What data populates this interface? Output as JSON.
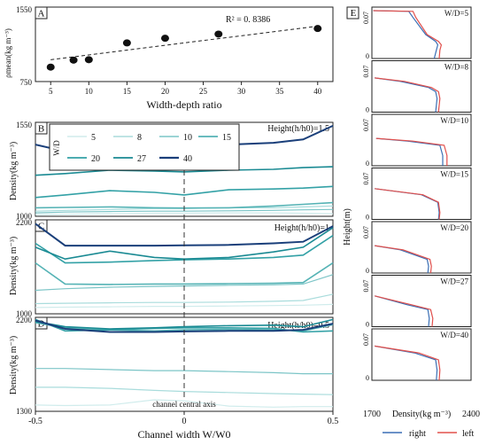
{
  "panel_a": {
    "letter": "A",
    "ylabel": "ρmean(kg m⁻³)",
    "xlabel": "Width-depth ratio",
    "y_ticks": [
      "1550",
      "750"
    ],
    "annotation": "R² = 0. 8386",
    "chart_data": {
      "type": "scatter",
      "x": [
        5,
        8,
        10,
        15,
        20,
        27,
        40
      ],
      "y": [
        905,
        980,
        985,
        1165,
        1215,
        1260,
        1320
      ],
      "xlim": [
        3,
        42
      ],
      "ylim": [
        750,
        1550
      ],
      "x_ticks": [
        5,
        10,
        15,
        20,
        25,
        30,
        35,
        40
      ],
      "trendline": {
        "x": [
          5,
          40
        ],
        "y": [
          985,
          1345
        ]
      }
    }
  },
  "legend": {
    "title": "W/D",
    "entries": [
      {
        "label": "5",
        "color": "#d0ecec"
      },
      {
        "label": "8",
        "color": "#a9dcdc"
      },
      {
        "label": "10",
        "color": "#7cc5c7"
      },
      {
        "label": "15",
        "color": "#55b3b5"
      },
      {
        "label": "20",
        "color": "#33a1a6"
      },
      {
        "label": "27",
        "color": "#1a8a93"
      },
      {
        "label": "40",
        "color": "#1a3f7a"
      }
    ]
  },
  "panels_bcd": [
    {
      "letter": "B",
      "height_label": "Height(h/h0)=1.5",
      "ylabel": "Density(kg m⁻³)",
      "y_ticks": [
        "1550",
        "1000"
      ],
      "chart_data": {
        "type": "line",
        "ylim": [
          1000,
          1550
        ],
        "x": [
          -0.5,
          -0.4,
          -0.25,
          -0.1,
          0,
          0.15,
          0.3,
          0.4,
          0.5
        ],
        "series": [
          {
            "name": "5",
            "values": [
              1010,
              1012,
              1015,
              1018,
              1018,
              1020,
              1020,
              1018,
              1015
            ]
          },
          {
            "name": "8",
            "values": [
              1030,
              1035,
              1040,
              1045,
              1045,
              1050,
              1050,
              1055,
              1060
            ]
          },
          {
            "name": "10",
            "values": [
              1020,
              1025,
              1028,
              1030,
              1030,
              1032,
              1035,
              1038,
              1040
            ]
          },
          {
            "name": "15",
            "values": [
              1050,
              1052,
              1055,
              1050,
              1048,
              1050,
              1060,
              1070,
              1080
            ]
          },
          {
            "name": "20",
            "values": [
              1110,
              1125,
              1150,
              1140,
              1125,
              1155,
              1160,
              1165,
              1175
            ]
          },
          {
            "name": "27",
            "values": [
              1240,
              1250,
              1270,
              1265,
              1260,
              1270,
              1275,
              1285,
              1290
            ]
          },
          {
            "name": "40",
            "values": [
              1420,
              1380,
              1400,
              1405,
              1410,
              1420,
              1430,
              1450,
              1530
            ]
          }
        ]
      }
    },
    {
      "letter": "C",
      "height_label": "Height(h/h0)=1",
      "ylabel": "Density(kg m⁻³)",
      "y_ticks": [
        "2200",
        "1000"
      ],
      "chart_data": {
        "type": "line",
        "ylim": [
          1000,
          2200
        ],
        "x": [
          -0.5,
          -0.4,
          -0.25,
          -0.1,
          0,
          0.15,
          0.3,
          0.4,
          0.5
        ],
        "series": [
          {
            "name": "5",
            "values": [
              1080,
              1085,
              1090,
              1095,
              1095,
              1100,
              1105,
              1110,
              1120
            ]
          },
          {
            "name": "8",
            "values": [
              1130,
              1135,
              1140,
              1145,
              1145,
              1150,
              1160,
              1170,
              1250
            ]
          },
          {
            "name": "10",
            "values": [
              1300,
              1320,
              1340,
              1350,
              1355,
              1365,
              1370,
              1380,
              1500
            ]
          },
          {
            "name": "15",
            "values": [
              1650,
              1380,
              1375,
              1380,
              1380,
              1385,
              1390,
              1400,
              1650
            ]
          },
          {
            "name": "20",
            "values": [
              1900,
              1650,
              1660,
              1680,
              1690,
              1700,
              1720,
              1750,
              2000
            ]
          },
          {
            "name": "27",
            "values": [
              1850,
              1700,
              1800,
              1720,
              1700,
              1720,
              1790,
              1850,
              2100
            ]
          },
          {
            "name": "40",
            "values": [
              2150,
              1870,
              1870,
              1870,
              1875,
              1880,
              1900,
              1920,
              2120
            ]
          }
        ]
      }
    },
    {
      "letter": "D",
      "height_label": "Height(h/h0)=0.5",
      "ylabel": "Density(kg m⁻³)",
      "y_ticks": [
        "2200",
        "1300"
      ],
      "center_label": "channel central axis",
      "xlabel": "Channel width  W/W0",
      "x_ticks": [
        "-0.5",
        "0",
        "0.5"
      ],
      "chart_data": {
        "type": "line",
        "ylim": [
          1300,
          2200
        ],
        "x": [
          -0.5,
          -0.4,
          -0.25,
          -0.1,
          0,
          0.15,
          0.3,
          0.4,
          0.5
        ],
        "series": [
          {
            "name": "5",
            "values": [
              1360,
              1355,
              1360,
              1410,
              1400,
              1350,
              1340,
              1345,
              1345
            ]
          },
          {
            "name": "8",
            "values": [
              1530,
              1530,
              1520,
              1500,
              1490,
              1480,
              1470,
              1465,
              1460
            ]
          },
          {
            "name": "10",
            "values": [
              1710,
              1710,
              1700,
              1690,
              1690,
              1680,
              1670,
              1660,
              1660
            ]
          },
          {
            "name": "15",
            "values": [
              2150,
              2100,
              2080,
              2070,
              2080,
              2085,
              2080,
              2070,
              2130
            ]
          },
          {
            "name": "20",
            "values": [
              2180,
              2070,
              2080,
              2095,
              2100,
              2100,
              2095,
              2060,
              2070
            ]
          },
          {
            "name": "27",
            "values": [
              2160,
              2110,
              2090,
              2100,
              2110,
              2120,
              2125,
              2110,
              2180
            ]
          },
          {
            "name": "40",
            "values": [
              2170,
              2090,
              2060,
              2060,
              2065,
              2070,
              2070,
              2080,
              2140
            ]
          }
        ]
      }
    }
  ],
  "panel_e": {
    "letter": "E",
    "ylabel": "Height(m)",
    "xlabel": "Density(kg m⁻³)",
    "x_ticks": [
      "1700",
      "2400"
    ],
    "y_tick_top": "0.07",
    "y_tick_zero": "0",
    "legend": [
      {
        "label": "right",
        "color": "#3a6fb5"
      },
      {
        "label": "left",
        "color": "#e2504c"
      }
    ],
    "chart_data": [
      {
        "type": "line",
        "label": "W/D=5",
        "xlim": [
          1700,
          2400
        ],
        "ylim": [
          0,
          0.07
        ],
        "right": {
          "x": [
            1710,
            1960,
            1990,
            2080,
            2150,
            2165,
            2155,
            2140
          ],
          "y": [
            0.07,
            0.069,
            0.06,
            0.035,
            0.025,
            0.02,
            0.012,
            0.0
          ]
        },
        "left": {
          "x": [
            1710,
            1990,
            2010,
            2090,
            2170,
            2190,
            2180,
            2175
          ],
          "y": [
            0.07,
            0.069,
            0.06,
            0.035,
            0.025,
            0.02,
            0.012,
            0.0
          ]
        }
      },
      {
        "type": "line",
        "label": "W/D=8",
        "xlim": [
          1700,
          2400
        ],
        "ylim": [
          0,
          0.07
        ],
        "right": {
          "x": [
            1720,
            1900,
            2100,
            2150,
            2160,
            2155,
            2150
          ],
          "y": [
            0.05,
            0.045,
            0.036,
            0.03,
            0.02,
            0.01,
            0.0
          ]
        },
        "left": {
          "x": [
            1720,
            1930,
            2120,
            2170,
            2180,
            2175,
            2170
          ],
          "y": [
            0.05,
            0.045,
            0.036,
            0.03,
            0.02,
            0.01,
            0.0
          ]
        }
      },
      {
        "type": "line",
        "label": "W/D=10",
        "xlim": [
          1700,
          2400
        ],
        "ylim": [
          0,
          0.07
        ],
        "right": {
          "x": [
            1730,
            1950,
            2180,
            2200,
            2200
          ],
          "y": [
            0.04,
            0.036,
            0.03,
            0.015,
            0.0
          ]
        },
        "left": {
          "x": [
            1730,
            1990,
            2210,
            2230,
            2230
          ],
          "y": [
            0.04,
            0.036,
            0.03,
            0.015,
            0.0
          ]
        }
      },
      {
        "type": "line",
        "label": "W/D=15",
        "xlim": [
          1700,
          2400
        ],
        "ylim": [
          0,
          0.07
        ],
        "right": {
          "x": [
            1720,
            2050,
            2165,
            2175,
            2170
          ],
          "y": [
            0.045,
            0.036,
            0.025,
            0.01,
            0.0
          ]
        },
        "left": {
          "x": [
            1720,
            2060,
            2170,
            2180,
            2175
          ],
          "y": [
            0.045,
            0.036,
            0.025,
            0.01,
            0.0
          ]
        }
      },
      {
        "type": "line",
        "label": "W/D=20",
        "xlim": [
          1700,
          2400
        ],
        "ylim": [
          0,
          0.07
        ],
        "right": {
          "x": [
            1720,
            1900,
            2090,
            2100,
            2095
          ],
          "y": [
            0.04,
            0.034,
            0.02,
            0.01,
            0.0
          ]
        },
        "left": {
          "x": [
            1720,
            1920,
            2110,
            2120,
            2115
          ],
          "y": [
            0.04,
            0.034,
            0.02,
            0.01,
            0.0
          ]
        }
      },
      {
        "type": "line",
        "label": "W/D=27",
        "xlim": [
          1700,
          2400
        ],
        "ylim": [
          0,
          0.07
        ],
        "right": {
          "x": [
            1720,
            1950,
            2095,
            2105,
            2100
          ],
          "y": [
            0.045,
            0.032,
            0.025,
            0.012,
            0.0
          ]
        },
        "left": {
          "x": [
            1720,
            1980,
            2115,
            2130,
            2125
          ],
          "y": [
            0.045,
            0.032,
            0.025,
            0.012,
            0.0
          ]
        }
      },
      {
        "type": "line",
        "label": "W/D=40",
        "xlim": [
          1700,
          2400
        ],
        "ylim": [
          0,
          0.07
        ],
        "right": {
          "x": [
            1720,
            2000,
            2150,
            2160,
            2155
          ],
          "y": [
            0.05,
            0.04,
            0.03,
            0.015,
            0.0
          ]
        },
        "left": {
          "x": [
            1720,
            2030,
            2170,
            2180,
            2175
          ],
          "y": [
            0.05,
            0.04,
            0.03,
            0.015,
            0.0
          ]
        }
      }
    ]
  }
}
